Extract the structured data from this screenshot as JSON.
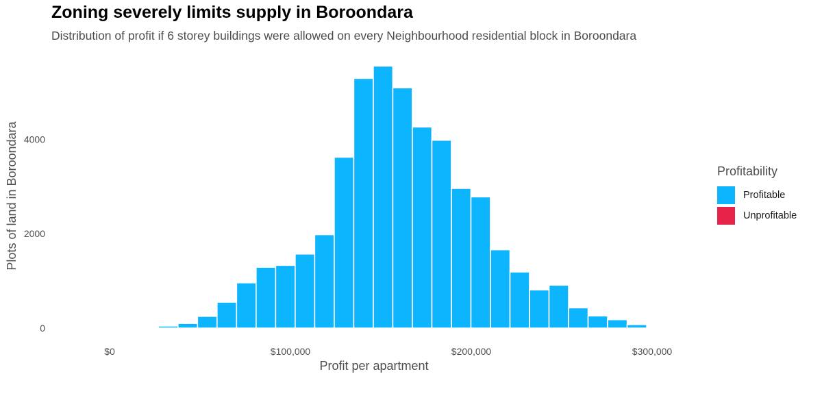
{
  "chart_data": {
    "type": "bar",
    "title": "Zoning severely limits supply in Boroondara",
    "subtitle": "Distribution of profit if 6 storey buildings were allowed on every Neighbourhood residential block in Boroondara",
    "xlabel": "Profit per apartment",
    "ylabel": "Plots of land in Boroondara",
    "xlim": [
      0,
      300000
    ],
    "ylim": [
      0,
      5600
    ],
    "x_ticks": [
      {
        "value": 0,
        "label": "$0"
      },
      {
        "value": 100000,
        "label": "$100,000"
      },
      {
        "value": 200000,
        "label": "$200,000"
      },
      {
        "value": 300000,
        "label": "$300,000"
      }
    ],
    "y_ticks": [
      {
        "value": 0,
        "label": "0"
      },
      {
        "value": 2000,
        "label": "2000"
      },
      {
        "value": 4000,
        "label": "4000"
      }
    ],
    "bin_width": 10800,
    "grid": false,
    "legend_position": "right",
    "legend": {
      "title": "Profitability",
      "items": [
        {
          "label": "Profitable",
          "color": "#0DB4FE"
        },
        {
          "label": "Unprofitable",
          "color": "#E8234A"
        }
      ]
    },
    "series": [
      {
        "name": "Profitable",
        "color": "#0DB4FE",
        "bins": [
          {
            "x": 21600,
            "y": 15
          },
          {
            "x": 32400,
            "y": 45
          },
          {
            "x": 43200,
            "y": 100
          },
          {
            "x": 54000,
            "y": 250
          },
          {
            "x": 64800,
            "y": 550
          },
          {
            "x": 75600,
            "y": 960
          },
          {
            "x": 86400,
            "y": 1290
          },
          {
            "x": 97200,
            "y": 1330
          },
          {
            "x": 108000,
            "y": 1570
          },
          {
            "x": 118800,
            "y": 1980
          },
          {
            "x": 129600,
            "y": 3620
          },
          {
            "x": 140400,
            "y": 5290
          },
          {
            "x": 151200,
            "y": 5550
          },
          {
            "x": 162000,
            "y": 5090
          },
          {
            "x": 172800,
            "y": 4260
          },
          {
            "x": 183600,
            "y": 3980
          },
          {
            "x": 194400,
            "y": 2960
          },
          {
            "x": 205200,
            "y": 2780
          },
          {
            "x": 216000,
            "y": 1660
          },
          {
            "x": 226800,
            "y": 1190
          },
          {
            "x": 237600,
            "y": 810
          },
          {
            "x": 248400,
            "y": 910
          },
          {
            "x": 259200,
            "y": 430
          },
          {
            "x": 270000,
            "y": 260
          },
          {
            "x": 280800,
            "y": 180
          },
          {
            "x": 291600,
            "y": 75
          }
        ]
      },
      {
        "name": "Unprofitable",
        "color": "#E8234A",
        "bins": []
      }
    ]
  }
}
